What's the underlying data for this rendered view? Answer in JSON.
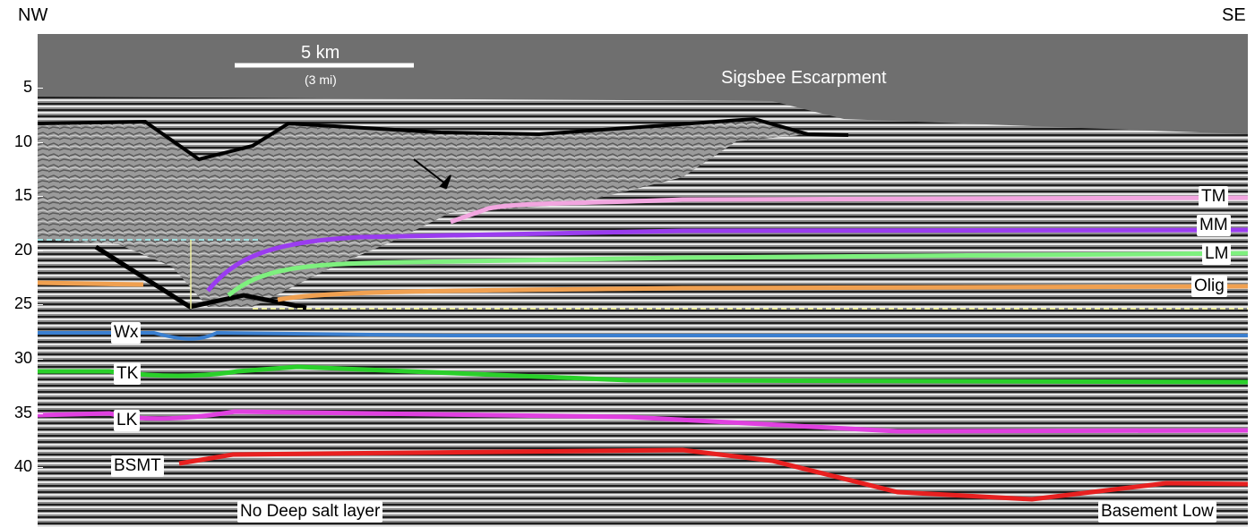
{
  "header": {
    "left": "NW",
    "right": "SE"
  },
  "scale_bar": {
    "label": "5 km",
    "sublabel": "(3 mi)"
  },
  "annotations": {
    "escarpment": "Sigsbee Escarpment",
    "no_salt": "No Deep salt layer",
    "basement_low": "Basement Low"
  },
  "depth_axis": {
    "ticks": [
      5,
      10,
      15,
      20,
      25,
      30,
      35,
      40
    ]
  },
  "horizons": {
    "tm": "TM",
    "mm": "MM",
    "lm": "LM",
    "olig": "Olig",
    "wx": "Wx",
    "tk": "TK",
    "lk": "LK",
    "bsmt": "BSMT"
  }
}
